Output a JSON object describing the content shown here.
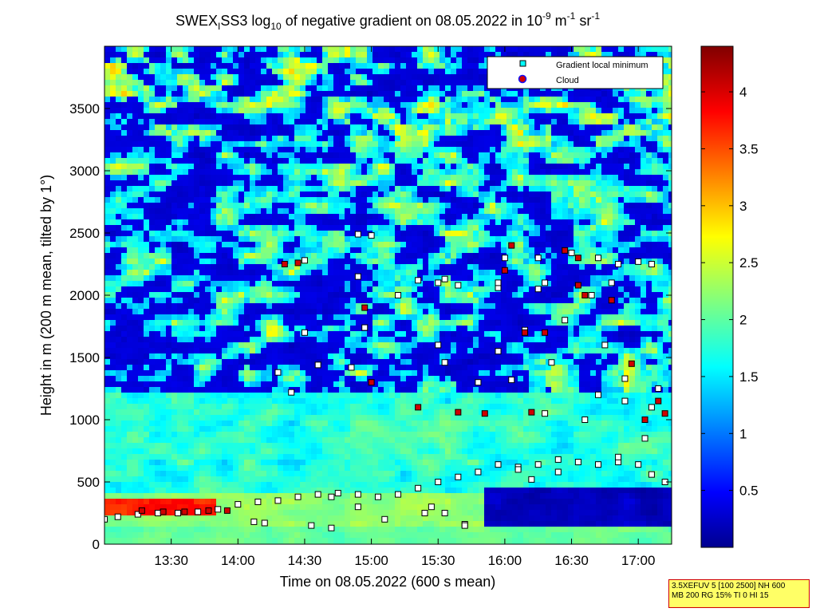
{
  "chart_data": {
    "type": "heatmap",
    "title": {
      "part1": "SWEX",
      "sub1": "I",
      "part2": "SS3 log",
      "sub2": "10",
      "part3": " of negative gradient on 08.05.2022 in 10",
      "sup1": "-9",
      "part4": " m",
      "sup2": "-1",
      "part5": " sr",
      "sup3": "-1"
    },
    "xlabel": "Time on 08.05.2022 (600 s mean)",
    "ylabel": "Height in m (200 m mean, tilted by 1°)",
    "x_range_hours": [
      13.0,
      17.25
    ],
    "x_ticks": [
      {
        "value": 13.5,
        "label": "13:30"
      },
      {
        "value": 14.0,
        "label": "14:00"
      },
      {
        "value": 14.5,
        "label": "14:30"
      },
      {
        "value": 15.0,
        "label": "15:00"
      },
      {
        "value": 15.5,
        "label": "15:30"
      },
      {
        "value": 16.0,
        "label": "16:00"
      },
      {
        "value": 16.5,
        "label": "16:30"
      },
      {
        "value": 17.0,
        "label": "17:00"
      }
    ],
    "ylim": [
      0,
      4000
    ],
    "y_ticks": [
      {
        "value": 0,
        "label": "0"
      },
      {
        "value": 500,
        "label": "500"
      },
      {
        "value": 1000,
        "label": "1000"
      },
      {
        "value": 1500,
        "label": "1500"
      },
      {
        "value": 2000,
        "label": "2000"
      },
      {
        "value": 2500,
        "label": "2500"
      },
      {
        "value": 3000,
        "label": "3000"
      },
      {
        "value": 3500,
        "label": "3500"
      }
    ],
    "colorbar": {
      "colormap": "jet",
      "range": [
        0,
        4.4
      ],
      "ticks": [
        {
          "value": 0.5,
          "label": "0.5"
        },
        {
          "value": 1,
          "label": "1"
        },
        {
          "value": 1.5,
          "label": "1.5"
        },
        {
          "value": 2,
          "label": "2"
        },
        {
          "value": 2.5,
          "label": "2.5"
        },
        {
          "value": 3,
          "label": "3"
        },
        {
          "value": 3.5,
          "label": "3.5"
        },
        {
          "value": 4,
          "label": "4"
        }
      ]
    },
    "legend": {
      "placement": "top-right",
      "entries": [
        {
          "label": "Gradient local minimum",
          "marker": "square",
          "color": "#00ffff"
        },
        {
          "label": "Cloud",
          "marker": "circle",
          "color": "#ff0000"
        }
      ]
    },
    "series": [
      {
        "name": "Gradient local minimum",
        "marker": "square",
        "x": [
          13.0,
          13.1,
          13.25,
          13.4,
          13.55,
          13.7,
          13.85,
          14.0,
          14.15,
          14.3,
          14.45,
          14.6,
          14.75,
          14.9,
          15.05,
          15.2,
          15.35,
          15.5,
          15.65,
          15.8,
          15.95,
          16.1,
          16.25,
          16.4,
          16.55,
          16.7,
          16.85,
          17.0,
          17.1,
          17.2,
          14.12,
          14.2,
          14.55,
          14.7,
          15.4,
          15.55,
          15.7,
          16.1,
          16.3,
          16.6,
          16.9,
          17.05,
          14.7,
          14.9,
          15.1,
          15.45,
          15.7,
          16.2,
          16.4,
          16.85,
          14.4,
          14.6,
          14.85,
          15.55,
          15.8,
          16.05,
          16.35,
          16.7,
          16.9,
          17.15,
          14.3,
          14.5,
          14.95,
          15.5,
          15.95,
          16.15,
          16.45,
          16.75,
          17.1,
          14.9,
          15.2,
          15.65,
          16.25,
          16.8,
          15.0,
          15.55,
          16.0,
          16.25,
          16.5,
          16.85,
          17.1,
          14.5,
          14.9,
          15.35,
          15.95,
          16.3,
          16.7,
          17.0,
          15.5,
          15.95,
          16.65
        ],
        "y": [
          200,
          220,
          240,
          250,
          250,
          260,
          280,
          320,
          340,
          350,
          380,
          400,
          410,
          400,
          380,
          400,
          450,
          500,
          540,
          580,
          640,
          620,
          640,
          680,
          660,
          640,
          660,
          640,
          560,
          500,
          180,
          170,
          150,
          130,
          250,
          250,
          160,
          600,
          1050,
          1000,
          1150,
          850,
          380,
          300,
          200,
          300,
          150,
          520,
          580,
          700,
          1220,
          1440,
          1420,
          1460,
          1300,
          1320,
          1460,
          1200,
          1330,
          1250,
          1380,
          1700,
          1740,
          1600,
          1550,
          1720,
          1800,
          1600,
          1100,
          2150,
          2000,
          2080,
          2050,
          2100,
          2480,
          2130,
          2300,
          2300,
          2340,
          2250,
          2250,
          2280,
          2490,
          2120,
          2060,
          2100,
          2300,
          2270,
          2100,
          2100,
          2000
        ],
        "color": "#00ffff"
      },
      {
        "name": "Cloud",
        "marker": "circle",
        "x": [
          13.28,
          13.44,
          13.6,
          13.78,
          13.92,
          14.35,
          14.45,
          15.0,
          14.95,
          15.35,
          15.65,
          15.85,
          16.0,
          16.05,
          16.15,
          16.3,
          16.45,
          16.55,
          16.6,
          16.8,
          16.95,
          17.05,
          17.2,
          17.15,
          16.2,
          16.55
        ],
        "y": [
          270,
          260,
          260,
          270,
          270,
          2250,
          2260,
          1300,
          1900,
          1100,
          1060,
          1050,
          2200,
          2400,
          1700,
          1700,
          2360,
          2080,
          2000,
          1960,
          1450,
          1000,
          1050,
          1150,
          1060,
          2300
        ],
        "color": "#d00000"
      }
    ]
  },
  "info_box": {
    "line1": "3.5XEFUV 5 [100 2500] NH 600",
    "line2": "MB 200 RG 15% TI 0 HI 15"
  }
}
